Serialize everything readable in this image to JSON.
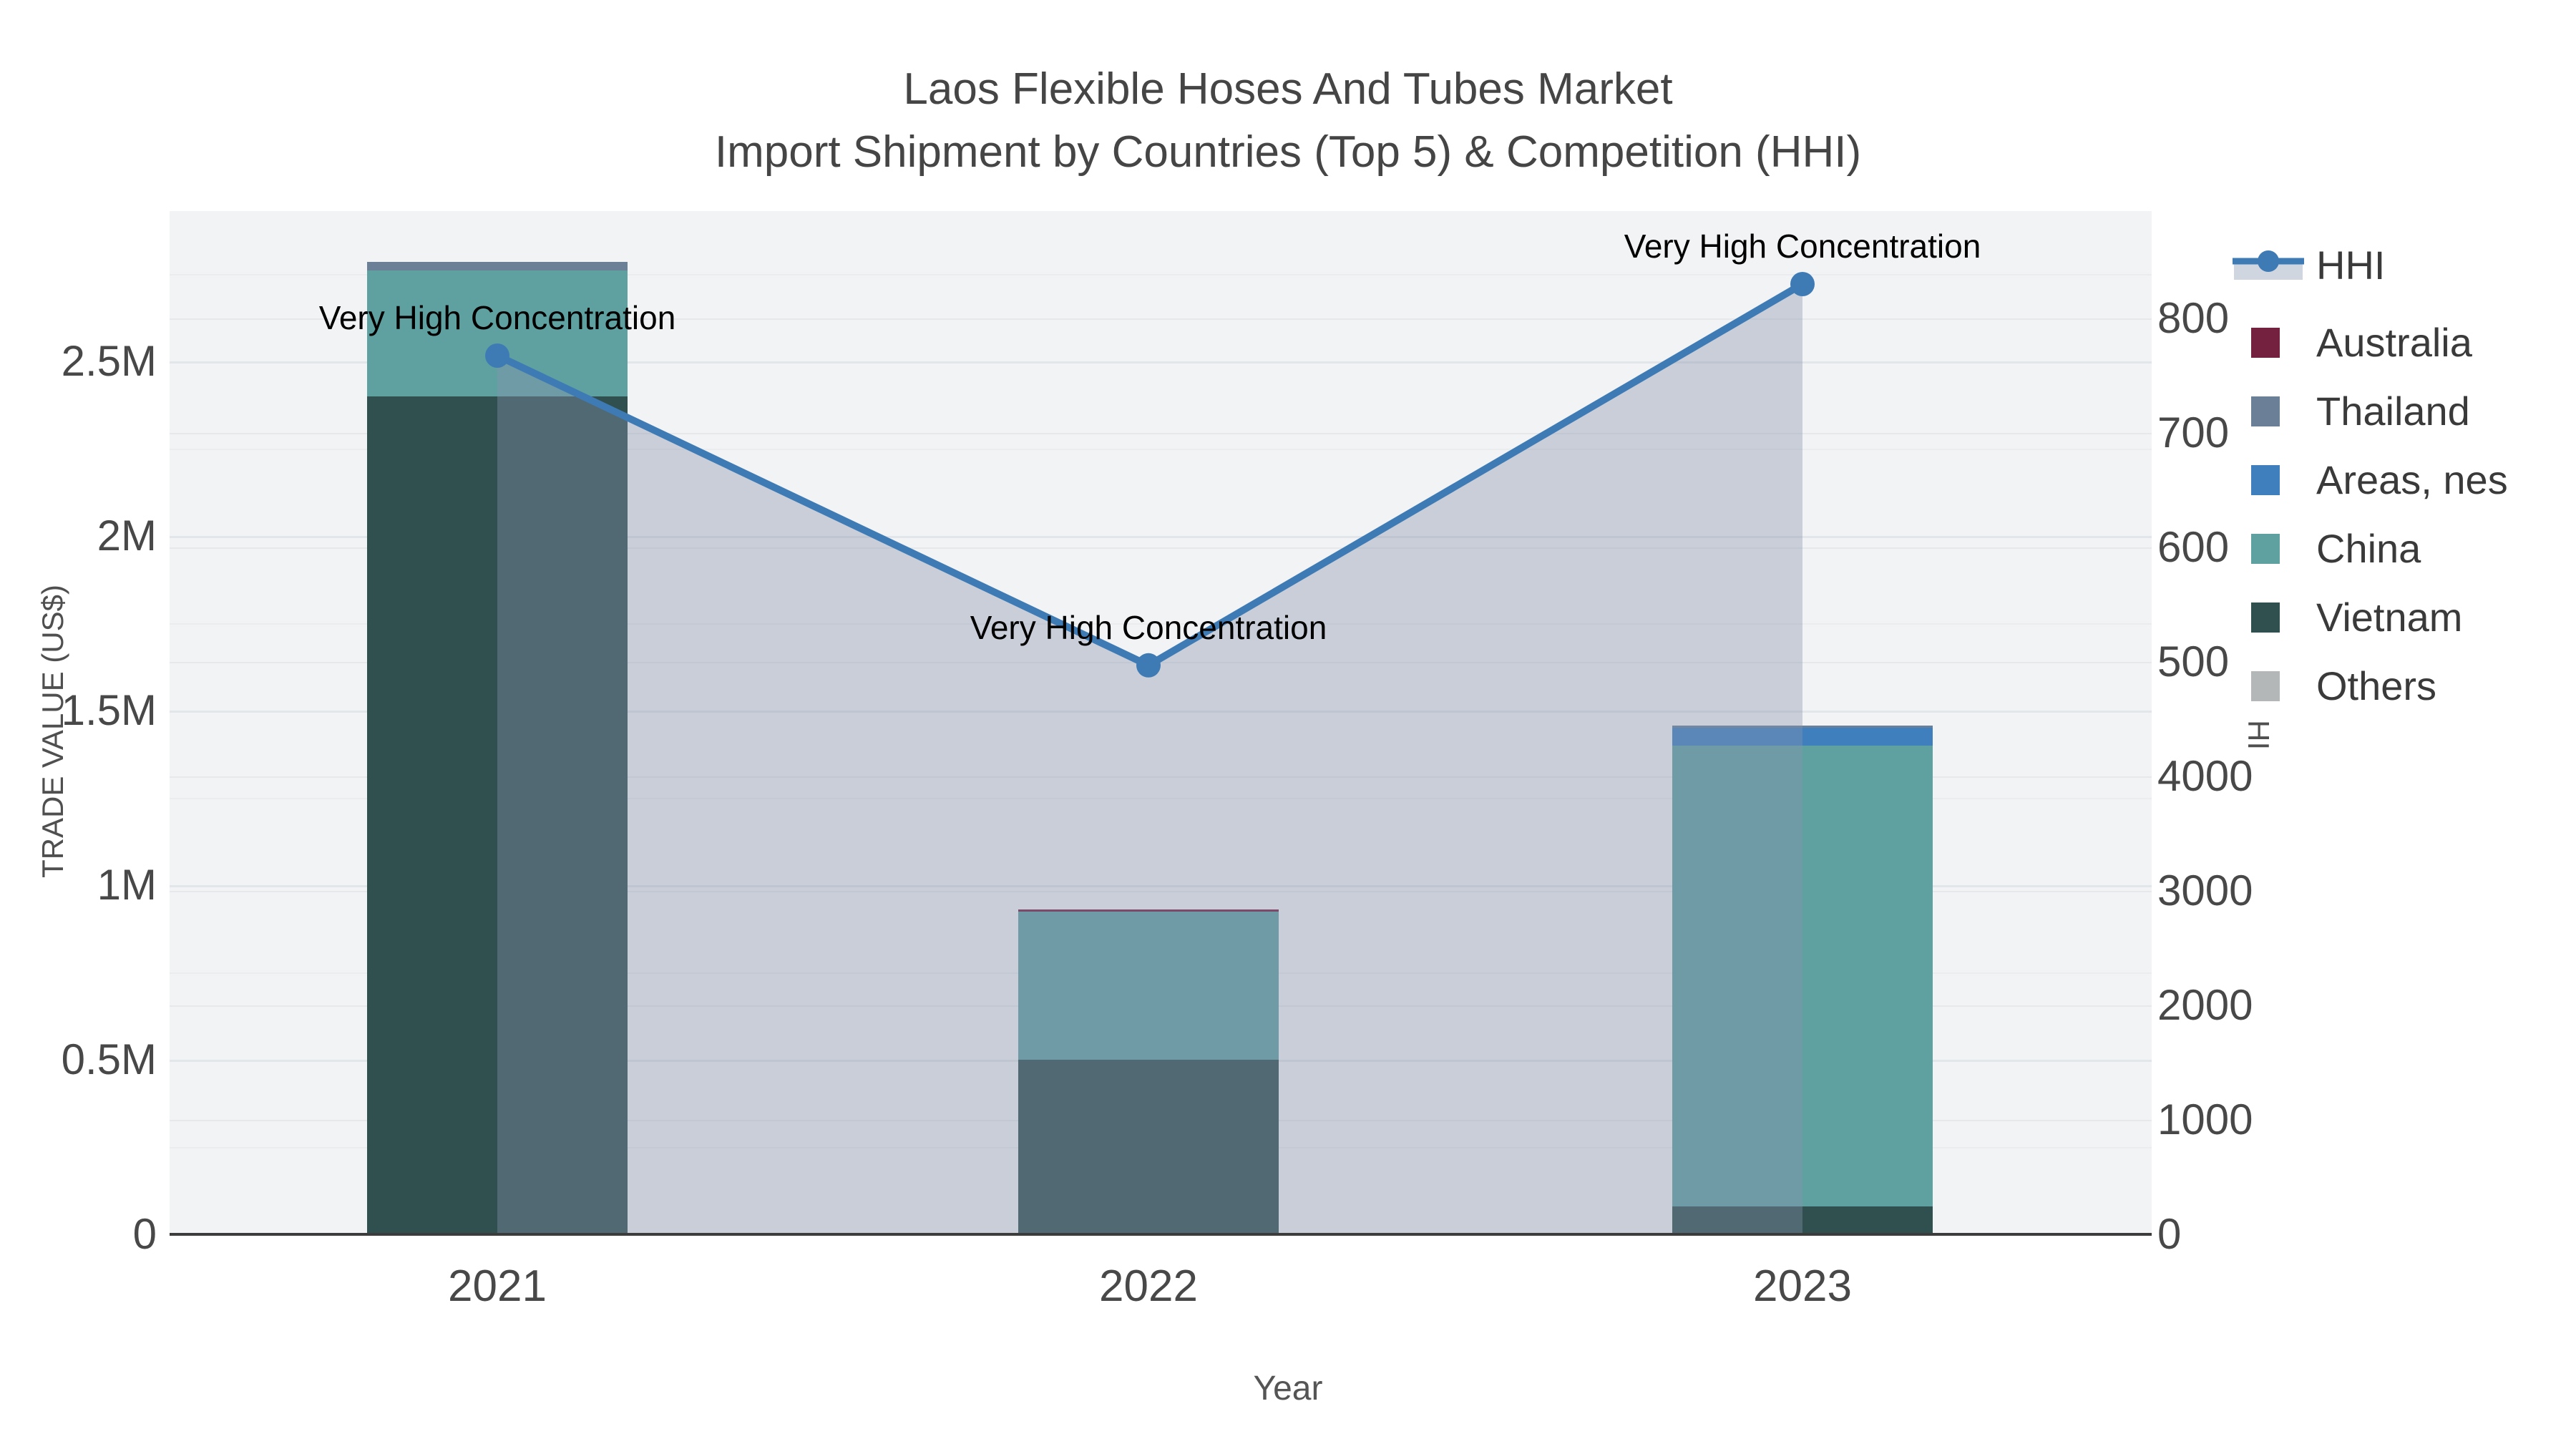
{
  "title": {
    "line1": "Laos Flexible Hoses And Tubes Market",
    "line2": "Import Shipment by Countries (Top 5) & Competition (HHI)"
  },
  "axes": {
    "x": {
      "title": "Year",
      "ticks": [
        "2021",
        "2022",
        "2023"
      ]
    },
    "y_left": {
      "title": "TRADE VALUE (US$)",
      "ticks": [
        {
          "label": "0",
          "value": 0
        },
        {
          "label": "0.5M",
          "value": 500000
        },
        {
          "label": "1M",
          "value": 1000000
        },
        {
          "label": "1.5M",
          "value": 1500000
        },
        {
          "label": "2M",
          "value": 2000000
        },
        {
          "label": "2.5M",
          "value": 2500000
        }
      ]
    },
    "y_right": {
      "title": "HHI",
      "ticks": [
        {
          "label": "0",
          "value": 0
        },
        {
          "label": "1000",
          "value": 1000
        },
        {
          "label": "2000",
          "value": 2000
        },
        {
          "label": "3000",
          "value": 3000
        },
        {
          "label": "4000",
          "value": 4000
        },
        {
          "label": "5000",
          "value": 5000
        },
        {
          "label": "6000",
          "value": 6000
        },
        {
          "label": "7000",
          "value": 7000
        },
        {
          "label": "8000",
          "value": 8000
        }
      ]
    }
  },
  "legend": {
    "items": [
      {
        "label": "HHI",
        "type": "line",
        "color": "#3e7bb5",
        "band": "#cfd6df"
      },
      {
        "label": "Australia",
        "type": "swatch",
        "color": "#74203f"
      },
      {
        "label": "Thailand",
        "type": "swatch",
        "color": "#6b7f96"
      },
      {
        "label": "Areas, nes",
        "type": "swatch",
        "color": "#3f7fbe"
      },
      {
        "label": "China",
        "type": "swatch",
        "color": "#5fa1a1"
      },
      {
        "label": "Vietnam",
        "type": "swatch",
        "color": "#2f504e"
      },
      {
        "label": "Others",
        "type": "swatch",
        "color": "#b3b7b7"
      }
    ]
  },
  "chart_data": {
    "type": "bar+line",
    "title": "Laos Flexible Hoses And Tubes Market — Import Shipment by Countries (Top 5) & Competition (HHI)",
    "categories": [
      "2021",
      "2022",
      "2023"
    ],
    "xlabel": "Year",
    "ylabel_left": "TRADE VALUE (US$)",
    "ylabel_right": "HHI",
    "ylim_left": [
      0,
      2930000
    ],
    "ylim_right": [
      0,
      8950
    ],
    "legend_position": "top-right",
    "grid": true,
    "bar_stack_order_bottom_up": [
      "Others",
      "Vietnam",
      "China",
      "Areas, nes",
      "Thailand",
      "Australia"
    ],
    "bar_series": [
      {
        "name": "Others",
        "color": "#b3b7b7",
        "values": [
          0,
          0,
          0
        ]
      },
      {
        "name": "Vietnam",
        "color": "#2f504e",
        "values": [
          2400000,
          500000,
          80000
        ]
      },
      {
        "name": "China",
        "color": "#5fa1a1",
        "values": [
          360000,
          425000,
          1320000
        ]
      },
      {
        "name": "Areas, nes",
        "color": "#3f7fbe",
        "values": [
          0,
          0,
          50000
        ]
      },
      {
        "name": "Thailand",
        "color": "#6b7f96",
        "values": [
          25000,
          0,
          6000
        ]
      },
      {
        "name": "Australia",
        "color": "#74203f",
        "values": [
          0,
          6000,
          0
        ]
      }
    ],
    "line_series": {
      "name": "HHI",
      "color": "#3e7bb5",
      "area_fill": "rgba(133,147,174,0.38)",
      "values": [
        7675,
        4970,
        8300
      ]
    },
    "annotations": [
      "Very High Concentration",
      "Very High Concentration",
      "Very High Concentration"
    ]
  },
  "colors": {
    "plot_bg": "#f2f3f4",
    "page_bg": "#ffffff",
    "grid_major": "#e2e5e9",
    "grid_minor": "#eaecee",
    "axis_line": "#3c3c3c",
    "tick_text": "#484848",
    "title_text": "#454545"
  }
}
